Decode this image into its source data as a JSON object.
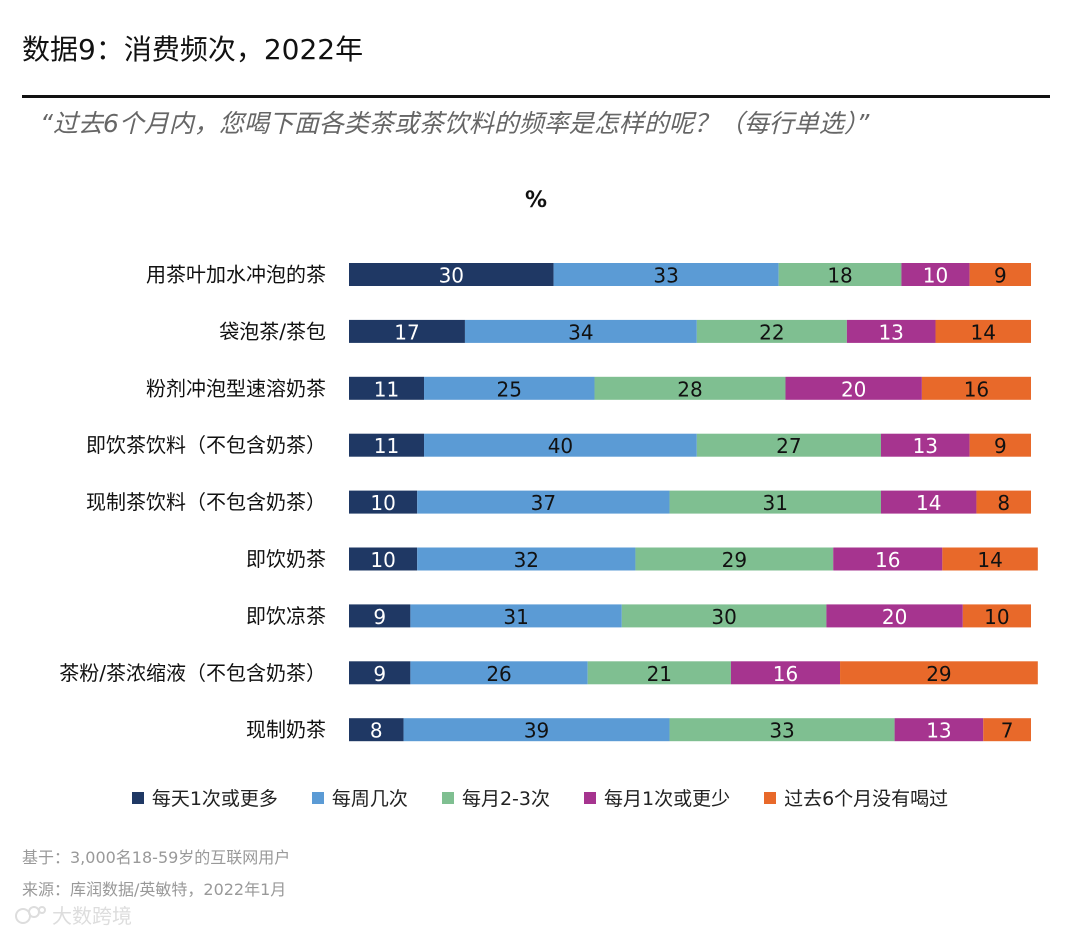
{
  "header": {
    "title": "数据9：消费频次，2022年",
    "question": "“过去6个月内，您喝下面各类茶或茶饮料的频率是怎样的呢？（每行单选）”"
  },
  "chart_data": {
    "type": "bar",
    "orientation": "horizontal",
    "stacked": true,
    "title": "%",
    "categories": [
      "用茶叶加水冲泡的茶",
      "袋泡茶/茶包",
      "粉剂冲泡型速溶奶茶",
      "即饮茶饮料（不包含奶茶）",
      "现制茶饮料（不包含奶茶）",
      "即饮奶茶",
      "即饮凉茶",
      "茶粉/茶浓缩液（不包含奶茶）",
      "现制奶茶"
    ],
    "series": [
      {
        "name": "每天1次或更多",
        "color": "#1f3864",
        "values": [
          30,
          17,
          11,
          11,
          10,
          10,
          9,
          9,
          8
        ]
      },
      {
        "name": "每周几次",
        "color": "#5b9bd5",
        "values": [
          33,
          34,
          25,
          40,
          37,
          32,
          31,
          26,
          39
        ]
      },
      {
        "name": "每月2-3次",
        "color": "#7fbf91",
        "values": [
          18,
          22,
          28,
          27,
          31,
          29,
          30,
          21,
          33
        ]
      },
      {
        "name": "每月1次或更少",
        "color": "#a6348f",
        "values": [
          10,
          13,
          20,
          13,
          14,
          16,
          20,
          16,
          13
        ]
      },
      {
        "name": "过去6个月没有喝过",
        "color": "#e8692a",
        "values": [
          9,
          14,
          16,
          9,
          8,
          14,
          10,
          29,
          7
        ]
      }
    ],
    "xlim": [
      0,
      100
    ],
    "legend_position": "bottom"
  },
  "footer": {
    "base": "基于：3,000名18-59岁的互联网用户",
    "source": "来源：库润数据/英敏特，2022年1月",
    "watermark": "大数跨境"
  }
}
